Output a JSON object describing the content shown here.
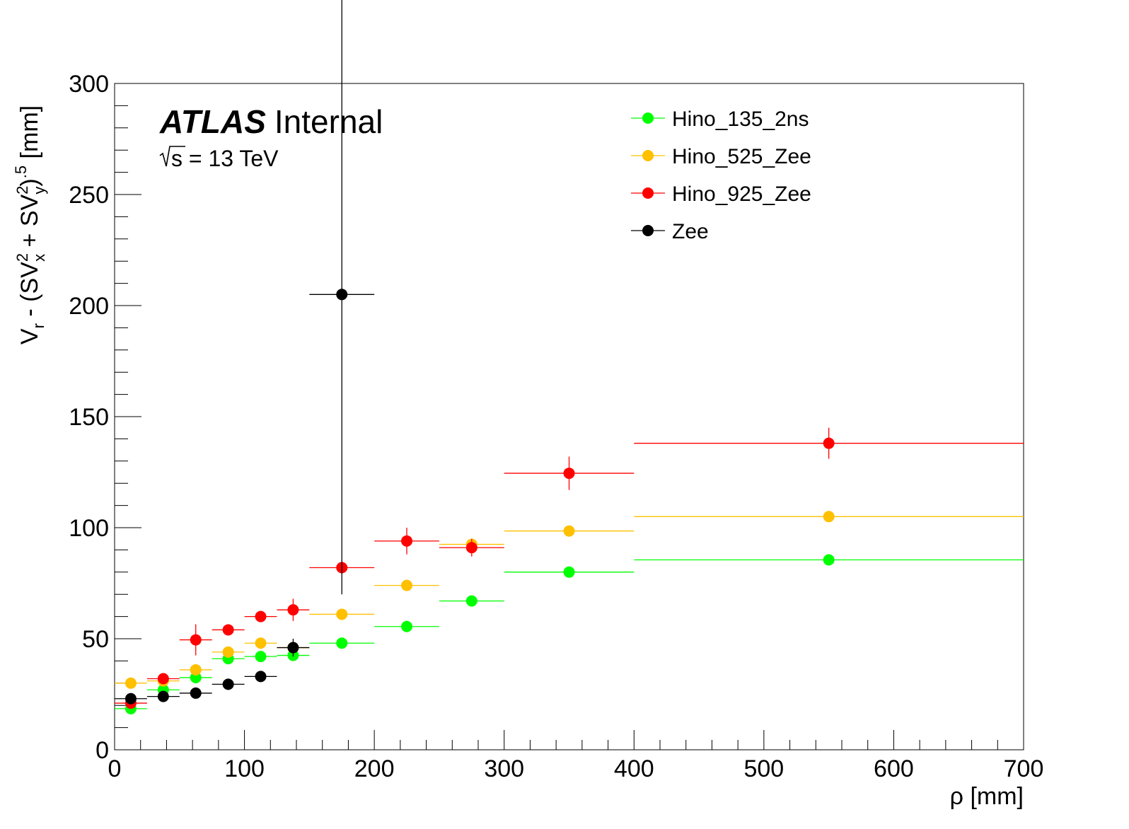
{
  "chart_data": {
    "type": "scatter",
    "title": "",
    "xlabel": "ρ [mm]",
    "ylabel": "V_r - (SV_x^2 + SV_y^2)^.5 [mm]",
    "xlim": [
      0,
      700
    ],
    "ylim": [
      0,
      300
    ],
    "x_ticks": [
      0,
      100,
      200,
      300,
      400,
      500,
      600,
      700
    ],
    "y_ticks": [
      0,
      50,
      100,
      150,
      200,
      250,
      300
    ],
    "grid": false,
    "legend_position": "top-right",
    "annotations": {
      "atlas_bold": "ATLAS",
      "atlas_rest": "Internal",
      "energy_s": "s",
      "energy_text": " = 13 TeV"
    },
    "series": [
      {
        "name": "Hino_135_2ns",
        "color": "#00ff00",
        "points": [
          {
            "x": 12.5,
            "xerr": 12.5,
            "y": 18.5,
            "yerr": 0.5
          },
          {
            "x": 37.5,
            "xerr": 12.5,
            "y": 27,
            "yerr": 0.5
          },
          {
            "x": 62.5,
            "xerr": 12.5,
            "y": 32.5,
            "yerr": 0.5
          },
          {
            "x": 87.5,
            "xerr": 12.5,
            "y": 41,
            "yerr": 0.5
          },
          {
            "x": 112.5,
            "xerr": 12.5,
            "y": 42,
            "yerr": 0.5
          },
          {
            "x": 137.5,
            "xerr": 12.5,
            "y": 42.5,
            "yerr": 0.5
          },
          {
            "x": 175,
            "xerr": 25,
            "y": 48,
            "yerr": 0.5
          },
          {
            "x": 225,
            "xerr": 25,
            "y": 55.5,
            "yerr": 0.5
          },
          {
            "x": 275,
            "xerr": 25,
            "y": 67,
            "yerr": 0.5
          },
          {
            "x": 350,
            "xerr": 50,
            "y": 80,
            "yerr": 0.5
          },
          {
            "x": 550,
            "xerr": 150,
            "y": 85.5,
            "yerr": 0.5
          }
        ]
      },
      {
        "name": "Hino_525_Zee",
        "color": "#ffc000",
        "points": [
          {
            "x": 12.5,
            "xerr": 12.5,
            "y": 30,
            "yerr": 1
          },
          {
            "x": 37.5,
            "xerr": 12.5,
            "y": 31,
            "yerr": 1
          },
          {
            "x": 62.5,
            "xerr": 12.5,
            "y": 36,
            "yerr": 1
          },
          {
            "x": 87.5,
            "xerr": 12.5,
            "y": 44,
            "yerr": 1
          },
          {
            "x": 112.5,
            "xerr": 12.5,
            "y": 48,
            "yerr": 1
          },
          {
            "x": 137.5,
            "xerr": 12.5,
            "y": 46,
            "yerr": 1
          },
          {
            "x": 175,
            "xerr": 25,
            "y": 61,
            "yerr": 1
          },
          {
            "x": 225,
            "xerr": 25,
            "y": 74,
            "yerr": 1
          },
          {
            "x": 275,
            "xerr": 25,
            "y": 92.5,
            "yerr": 1.5
          },
          {
            "x": 350,
            "xerr": 50,
            "y": 98.5,
            "yerr": 1
          },
          {
            "x": 550,
            "xerr": 150,
            "y": 105,
            "yerr": 1
          }
        ]
      },
      {
        "name": "Hino_925_Zee",
        "color": "#ff0000",
        "points": [
          {
            "x": 12.5,
            "xerr": 12.5,
            "y": 21,
            "yerr": 1.5
          },
          {
            "x": 37.5,
            "xerr": 12.5,
            "y": 32,
            "yerr": 1.5
          },
          {
            "x": 62.5,
            "xerr": 12.5,
            "y": 49.5,
            "yerr": 7
          },
          {
            "x": 87.5,
            "xerr": 12.5,
            "y": 54,
            "yerr": 2.5
          },
          {
            "x": 112.5,
            "xerr": 12.5,
            "y": 60,
            "yerr": 2.5
          },
          {
            "x": 137.5,
            "xerr": 12.5,
            "y": 63,
            "yerr": 5
          },
          {
            "x": 175,
            "xerr": 25,
            "y": 82,
            "yerr": 2.5
          },
          {
            "x": 225,
            "xerr": 25,
            "y": 94,
            "yerr": 6
          },
          {
            "x": 275,
            "xerr": 25,
            "y": 91,
            "yerr": 4
          },
          {
            "x": 350,
            "xerr": 50,
            "y": 124.5,
            "yerr": 7.5
          },
          {
            "x": 550,
            "xerr": 150,
            "y": 138,
            "yerr": 7
          }
        ]
      },
      {
        "name": "Zee",
        "color": "#000000",
        "points": [
          {
            "x": 12.5,
            "xerr": 12.5,
            "y": 23,
            "yerr": 1
          },
          {
            "x": 37.5,
            "xerr": 12.5,
            "y": 24,
            "yerr": 1
          },
          {
            "x": 62.5,
            "xerr": 12.5,
            "y": 25.5,
            "yerr": 1
          },
          {
            "x": 87.5,
            "xerr": 12.5,
            "y": 29.5,
            "yerr": 1
          },
          {
            "x": 112.5,
            "xerr": 12.5,
            "y": 33,
            "yerr": 1
          },
          {
            "x": 137.5,
            "xerr": 12.5,
            "y": 46,
            "yerr": 4
          },
          {
            "x": 175,
            "xerr": 25,
            "y": 205,
            "yerr": 135
          }
        ]
      }
    ]
  }
}
